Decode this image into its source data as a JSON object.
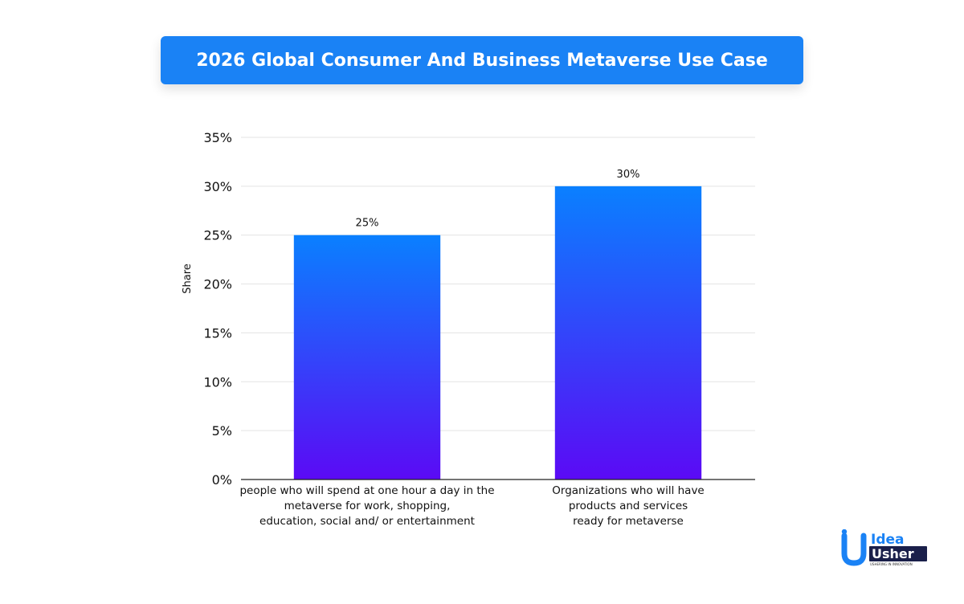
{
  "banner": {
    "title": "2026 Global Consumer And Business Metaverse Use Case"
  },
  "colors": {
    "banner": "#1a82f5",
    "bar_top": "#0a80ff",
    "bar_bottom": "#5b0af5",
    "grid": "#e3e3e3"
  },
  "logo": {
    "line1": "Idea",
    "line2": "Usher",
    "tagline": "USHERING IN INNOVATION"
  },
  "chart_data": {
    "type": "bar",
    "title": "2026 Global Consumer And Business Metaverse Use Case",
    "ylabel": "Share",
    "xlabel": "",
    "ylim": [
      0,
      35
    ],
    "ytick_values": [
      0,
      5,
      10,
      15,
      20,
      25,
      30,
      35
    ],
    "ytick_labels": [
      "0%",
      "5%",
      "10%",
      "15%",
      "20%",
      "25%",
      "30%",
      "35%"
    ],
    "grid": true,
    "categories": [
      "people who will spend at one hour a day in the metaverse for work, shopping, education, social and/ or entertainment",
      "Organizations who will have products and services ready for metaverse"
    ],
    "category_lines": [
      [
        "people who will spend at one hour a day in the",
        "metaverse for work, shopping,",
        "education, social and/ or entertainment"
      ],
      [
        "Organizations who will have",
        "products and services",
        "ready for metaverse"
      ]
    ],
    "values": [
      25,
      30
    ],
    "data_labels": [
      "25%",
      "30%"
    ]
  }
}
